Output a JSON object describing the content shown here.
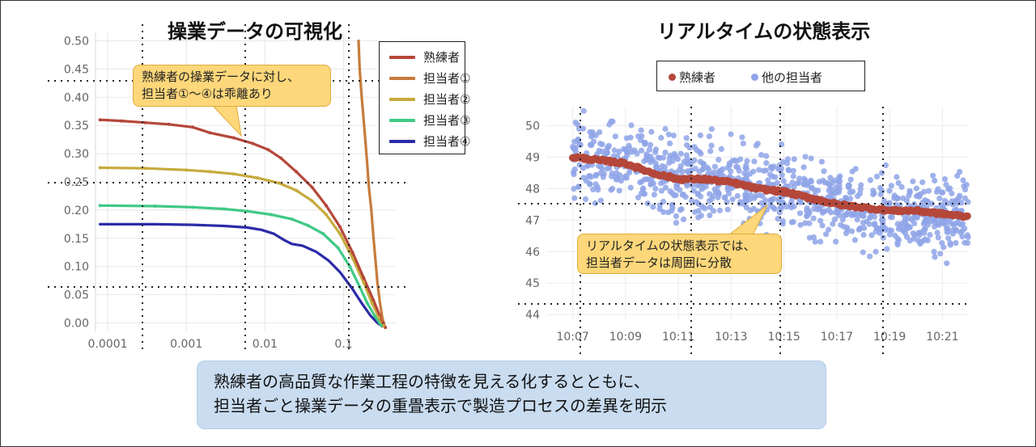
{
  "left_chart": {
    "title": "操業データの可視化",
    "callout": [
      "熟練者の操業データに対し、",
      "担当者①～④は乖離あり"
    ],
    "legend": [
      "熟練者",
      "担当者①",
      "担当者②",
      "担当者③",
      "担当者④"
    ]
  },
  "right_chart": {
    "title": "リアルタイムの状態表示",
    "callout": [
      "リアルタイムの状態表示では、",
      "担当者データは周囲に分散"
    ],
    "legend": [
      "熟練者",
      "他の担当者"
    ]
  },
  "banner": [
    "熟練者の高品質な作業工程の特徴を見える化するとともに、",
    "担当者ごと操業データの重畳表示で製造プロセスの差異を明示"
  ],
  "colors": {
    "expert": "#b5473a",
    "worker1": "#c77b3c",
    "worker2": "#c6aa3c",
    "worker3": "#3fc986",
    "worker4": "#2c2ba8",
    "others_dots": "#8fa4e8",
    "callout_fill": "#fdd77a",
    "banner_fill": "#c9dcf0"
  },
  "chart_data": [
    {
      "type": "line",
      "x_scale": "log",
      "xlim": [
        7e-05,
        0.45
      ],
      "ylim": [
        -0.015,
        0.515
      ],
      "x_ticks": [
        0.0001,
        0.001,
        0.01,
        0.1
      ],
      "x_tick_labels": [
        "0.0001",
        "0.001",
        "0.01",
        "0.1"
      ],
      "y_ticks": [
        0.0,
        0.05,
        0.1,
        0.15,
        0.2,
        0.25,
        0.3,
        0.35,
        0.4,
        0.45,
        0.5
      ],
      "y_tick_labels": [
        "0.00",
        "0.05",
        "0.10",
        "0.15",
        "0.20",
        "0.25",
        "0.30",
        "0.35",
        "0.40",
        "0.45",
        "0.50"
      ],
      "grid": true,
      "legend_position": "top-right",
      "series": [
        {
          "name": "熟練者",
          "points": [
            [
              8e-05,
              0.36
            ],
            [
              0.00015,
              0.358
            ],
            [
              0.0003,
              0.355
            ],
            [
              0.0006,
              0.352
            ],
            [
              0.0012,
              0.347
            ],
            [
              0.002,
              0.337
            ],
            [
              0.004,
              0.328
            ],
            [
              0.007,
              0.318
            ],
            [
              0.011,
              0.307
            ],
            [
              0.016,
              0.292
            ],
            [
              0.025,
              0.268
            ],
            [
              0.04,
              0.24
            ],
            [
              0.06,
              0.208
            ],
            [
              0.09,
              0.17
            ],
            [
              0.13,
              0.125
            ],
            [
              0.18,
              0.08
            ],
            [
              0.24,
              0.04
            ],
            [
              0.29,
              0.012
            ],
            [
              0.32,
              0.0
            ],
            [
              0.34,
              -0.008
            ]
          ]
        },
        {
          "name": "担当者①",
          "points": [
            [
              0.155,
              0.5
            ],
            [
              0.16,
              0.45
            ],
            [
              0.17,
              0.4
            ],
            [
              0.18,
              0.36
            ],
            [
              0.19,
              0.32
            ],
            [
              0.2,
              0.28
            ],
            [
              0.21,
              0.24
            ],
            [
              0.225,
              0.2
            ],
            [
              0.24,
              0.15
            ],
            [
              0.255,
              0.11
            ],
            [
              0.27,
              0.07
            ],
            [
              0.29,
              0.035
            ],
            [
              0.31,
              0.01
            ],
            [
              0.33,
              -0.005
            ]
          ]
        },
        {
          "name": "担当者②",
          "points": [
            [
              8e-05,
              0.275
            ],
            [
              0.0003,
              0.274
            ],
            [
              0.001,
              0.271
            ],
            [
              0.002,
              0.268
            ],
            [
              0.004,
              0.264
            ],
            [
              0.008,
              0.257
            ],
            [
              0.015,
              0.248
            ],
            [
              0.025,
              0.235
            ],
            [
              0.04,
              0.216
            ],
            [
              0.06,
              0.192
            ],
            [
              0.09,
              0.158
            ],
            [
              0.13,
              0.115
            ],
            [
              0.18,
              0.072
            ],
            [
              0.23,
              0.035
            ],
            [
              0.28,
              0.01
            ],
            [
              0.32,
              -0.005
            ]
          ]
        },
        {
          "name": "担当者③",
          "points": [
            [
              8e-05,
              0.208
            ],
            [
              0.0004,
              0.207
            ],
            [
              0.0012,
              0.205
            ],
            [
              0.003,
              0.202
            ],
            [
              0.006,
              0.198
            ],
            [
              0.012,
              0.192
            ],
            [
              0.022,
              0.184
            ],
            [
              0.035,
              0.173
            ],
            [
              0.055,
              0.158
            ],
            [
              0.085,
              0.133
            ],
            [
              0.12,
              0.1
            ],
            [
              0.16,
              0.064
            ],
            [
              0.2,
              0.035
            ],
            [
              0.25,
              0.012
            ],
            [
              0.3,
              -0.004
            ]
          ]
        },
        {
          "name": "担当者④",
          "points": [
            [
              8e-05,
              0.175
            ],
            [
              0.0004,
              0.175
            ],
            [
              0.0012,
              0.174
            ],
            [
              0.003,
              0.172
            ],
            [
              0.006,
              0.169
            ],
            [
              0.009,
              0.165
            ],
            [
              0.013,
              0.158
            ],
            [
              0.018,
              0.146
            ],
            [
              0.022,
              0.14
            ],
            [
              0.03,
              0.137
            ],
            [
              0.045,
              0.126
            ],
            [
              0.065,
              0.11
            ],
            [
              0.09,
              0.09
            ],
            [
              0.13,
              0.06
            ],
            [
              0.17,
              0.035
            ],
            [
              0.22,
              0.013
            ],
            [
              0.27,
              0.0
            ],
            [
              0.31,
              -0.006
            ]
          ]
        }
      ]
    },
    {
      "type": "scatter",
      "x_is_time": true,
      "xlim": [
        "10:06",
        "10:22"
      ],
      "ylim": [
        43.8,
        50.6
      ],
      "x_ticks": [
        "10:07",
        "10:09",
        "10:11",
        "10:13",
        "10:15",
        "10:17",
        "10:19",
        "10:21"
      ],
      "y_ticks": [
        44,
        45,
        46,
        47,
        48,
        49,
        50
      ],
      "grid": true,
      "legend_position": "top",
      "series": [
        {
          "name": "熟練者",
          "trend": [
            [
              "10:07",
              49.0
            ],
            [
              "10:08",
              48.9
            ],
            [
              "10:09",
              48.8
            ],
            [
              "10:10",
              48.5
            ],
            [
              "10:11",
              48.3
            ],
            [
              "10:12",
              48.3
            ],
            [
              "10:13",
              48.2
            ],
            [
              "10:14",
              48.0
            ],
            [
              "10:15",
              47.9
            ],
            [
              "10:16",
              47.7
            ],
            [
              "10:17",
              47.5
            ],
            [
              "10:18",
              47.4
            ],
            [
              "10:19",
              47.3
            ],
            [
              "10:20",
              47.3
            ],
            [
              "10:21",
              47.2
            ],
            [
              "10:22",
              47.1
            ]
          ]
        },
        {
          "name": "他の担当者",
          "distribution": "scattered around 熟練者 trend, spread about ±1.5",
          "x_range": [
            "10:07",
            "10:22"
          ]
        }
      ]
    }
  ]
}
